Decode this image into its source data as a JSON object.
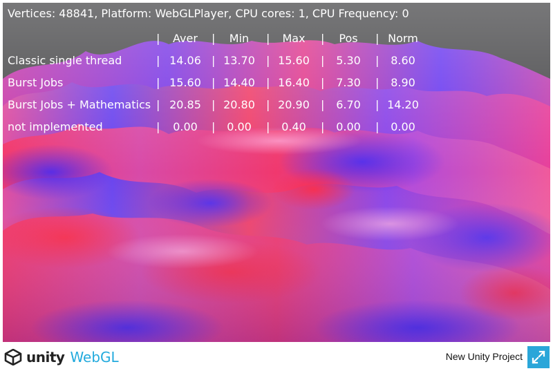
{
  "header": {
    "info": "Vertices: 48841, Platform: WebGLPlayer, CPU cores: 1, CPU Frequency: 0"
  },
  "table": {
    "separator": "|",
    "columns": [
      "Aver",
      "Min",
      "Max",
      "Pos",
      "Norm"
    ],
    "rows": [
      {
        "name": "Classic single thread",
        "values": [
          "14.06",
          "13.70",
          "15.60",
          "5.30",
          "8.60"
        ]
      },
      {
        "name": "Burst Jobs",
        "values": [
          "15.60",
          "14.40",
          "16.40",
          "7.30",
          "8.90"
        ]
      },
      {
        "name": "Burst Jobs + Mathematics",
        "values": [
          "20.85",
          "20.80",
          "20.90",
          "6.70",
          "14.20"
        ]
      },
      {
        "name": "not implemented",
        "values": [
          "0.00",
          "0.00",
          "0.40",
          "0.00",
          "0.00"
        ]
      }
    ]
  },
  "footer": {
    "unity_label": "unity",
    "webgl_label": "WebGL",
    "project_title": "New Unity Project",
    "fullscreen_icon": "fullscreen-icon"
  },
  "colors": {
    "background": "#4a4a4c",
    "terrain_pink": "#e0449a",
    "terrain_red": "#f0345a",
    "terrain_blue": "#5a3cf0",
    "webgl_blue": "#22aadd",
    "fullscreen_button": "#2aa6d9"
  }
}
